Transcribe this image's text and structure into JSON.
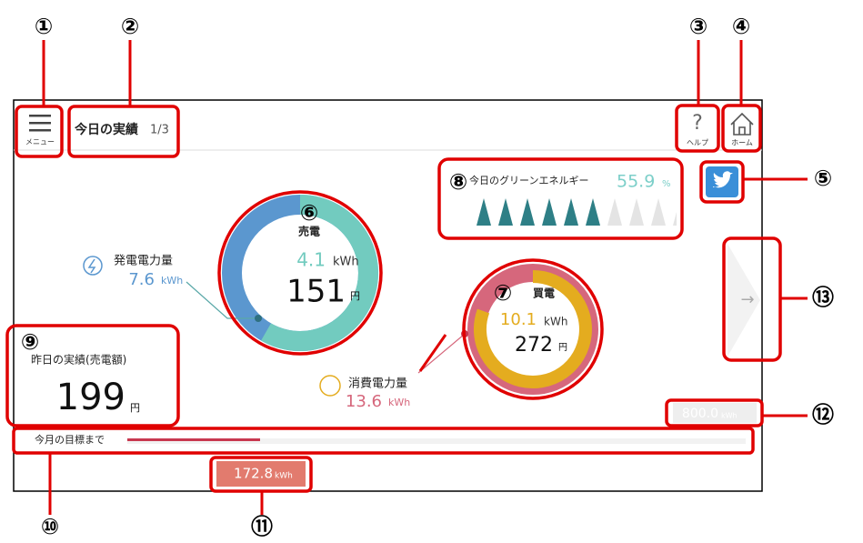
{
  "annotations": [
    "①",
    "②",
    "③",
    "④",
    "⑤",
    "⑥",
    "⑦",
    "⑧",
    "⑨",
    "⑩",
    "⑪",
    "⑫",
    "⑬"
  ],
  "header": {
    "menu_label": "メニュー",
    "title": "今日の実績",
    "page": "1/3",
    "help_icon": "?",
    "help_label": "ヘルプ",
    "home_label": "ホーム"
  },
  "green_energy": {
    "label": "今日のグリーンエネルギー",
    "value": 55.9,
    "unit": "%"
  },
  "sale": {
    "label": "売電",
    "energy": 4.1,
    "energy_unit": "kWh",
    "amount": 151,
    "amount_unit": "円"
  },
  "generation": {
    "label": "発電電力量",
    "value": 7.6,
    "unit": "kWh"
  },
  "purchase": {
    "label": "買電",
    "energy": 10.1,
    "energy_unit": "kWh",
    "amount": 272,
    "amount_unit": "円"
  },
  "consumption": {
    "label": "消費電力量",
    "value": 13.6,
    "unit": "kWh"
  },
  "yesterday": {
    "label": "昨日の実績(売電額)",
    "amount": 199,
    "unit": "円"
  },
  "goal": {
    "label": "今月の目標まで",
    "target": "800.0",
    "target_unit": "kWh",
    "current": 172.8,
    "current_unit": "kWh"
  },
  "next_arrow": "→"
}
